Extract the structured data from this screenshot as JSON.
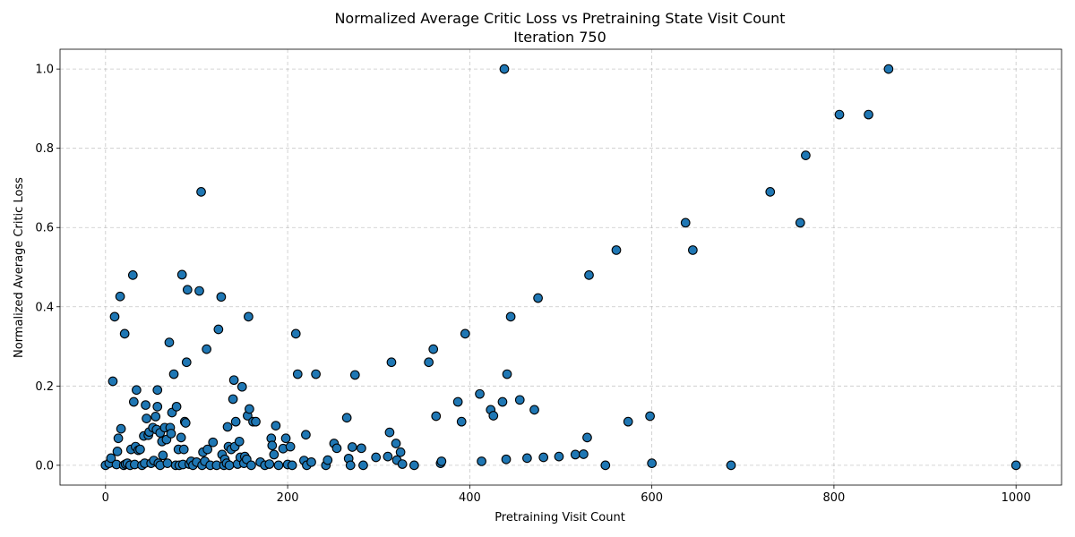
{
  "chart_data": {
    "type": "scatter",
    "title": "Normalized Average Critic Loss vs Pretraining State Visit Count",
    "subtitle": "Iteration 750",
    "xlabel": "Pretraining Visit Count",
    "ylabel": "Normalized Average Critic Loss",
    "xlim": [
      -50,
      1050
    ],
    "ylim": [
      -0.05,
      1.05
    ],
    "xticks": [
      "0",
      "200",
      "400",
      "600",
      "800",
      "1000"
    ],
    "xtick_values": [
      0,
      200,
      400,
      600,
      800,
      1000
    ],
    "yticks": [
      "0.0",
      "0.2",
      "0.4",
      "0.6",
      "0.8",
      "1.0"
    ],
    "ytick_values": [
      0.0,
      0.2,
      0.4,
      0.6,
      0.8,
      1.0
    ],
    "grid": true,
    "marker_color": "#1f77b4",
    "edge_color": "#000000",
    "points": [
      [
        0,
        0.0
      ],
      [
        4,
        0.005
      ],
      [
        6,
        0.018
      ],
      [
        8,
        0.212
      ],
      [
        10,
        0.375
      ],
      [
        12,
        0.002
      ],
      [
        13,
        0.035
      ],
      [
        14,
        0.068
      ],
      [
        16,
        0.426
      ],
      [
        17,
        0.092
      ],
      [
        20,
        0.0
      ],
      [
        21,
        0.332
      ],
      [
        22,
        0.003
      ],
      [
        24,
        0.005
      ],
      [
        27,
        0.0
      ],
      [
        28,
        0.04
      ],
      [
        30,
        0.48
      ],
      [
        31,
        0.16
      ],
      [
        32,
        0.002
      ],
      [
        33,
        0.047
      ],
      [
        34,
        0.19
      ],
      [
        36,
        0.038
      ],
      [
        38,
        0.04
      ],
      [
        40,
        0.0
      ],
      [
        42,
        0.074
      ],
      [
        43,
        0.005
      ],
      [
        44,
        0.152
      ],
      [
        45,
        0.118
      ],
      [
        47,
        0.076
      ],
      [
        48,
        0.084
      ],
      [
        50,
        0.005
      ],
      [
        52,
        0.095
      ],
      [
        53,
        0.012
      ],
      [
        55,
        0.123
      ],
      [
        56,
        0.09
      ],
      [
        57,
        0.148
      ],
      [
        57,
        0.19
      ],
      [
        58,
        0.005
      ],
      [
        60,
        0.082
      ],
      [
        60,
        0.0
      ],
      [
        62,
        0.06
      ],
      [
        63,
        0.025
      ],
      [
        65,
        0.095
      ],
      [
        67,
        0.065
      ],
      [
        68,
        0.005
      ],
      [
        70,
        0.31
      ],
      [
        71,
        0.095
      ],
      [
        72,
        0.08
      ],
      [
        73,
        0.133
      ],
      [
        75,
        0.23
      ],
      [
        77,
        0.0
      ],
      [
        78,
        0.148
      ],
      [
        80,
        0.04
      ],
      [
        81,
        0.0
      ],
      [
        83,
        0.07
      ],
      [
        84,
        0.481
      ],
      [
        85,
        0.002
      ],
      [
        86,
        0.04
      ],
      [
        87,
        0.11
      ],
      [
        88,
        0.107
      ],
      [
        89,
        0.26
      ],
      [
        90,
        0.443
      ],
      [
        92,
        0.003
      ],
      [
        94,
        0.01
      ],
      [
        96,
        0.0
      ],
      [
        100,
        0.008
      ],
      [
        103,
        0.44
      ],
      [
        105,
        0.69
      ],
      [
        106,
        0.0
      ],
      [
        107,
        0.033
      ],
      [
        109,
        0.01
      ],
      [
        111,
        0.293
      ],
      [
        112,
        0.04
      ],
      [
        115,
        0.0
      ],
      [
        118,
        0.058
      ],
      [
        122,
        0.0
      ],
      [
        124,
        0.343
      ],
      [
        127,
        0.425
      ],
      [
        128,
        0.027
      ],
      [
        130,
        0.0
      ],
      [
        131,
        0.015
      ],
      [
        133,
        0.005
      ],
      [
        134,
        0.097
      ],
      [
        135,
        0.047
      ],
      [
        136,
        0.0
      ],
      [
        138,
        0.04
      ],
      [
        140,
        0.167
      ],
      [
        141,
        0.215
      ],
      [
        142,
        0.047
      ],
      [
        143,
        0.11
      ],
      [
        145,
        0.003
      ],
      [
        147,
        0.06
      ],
      [
        148,
        0.02
      ],
      [
        150,
        0.198
      ],
      [
        152,
        0.005
      ],
      [
        153,
        0.022
      ],
      [
        155,
        0.015
      ],
      [
        156,
        0.125
      ],
      [
        157,
        0.375
      ],
      [
        158,
        0.142
      ],
      [
        160,
        0.0
      ],
      [
        162,
        0.11
      ],
      [
        165,
        0.11
      ],
      [
        170,
        0.008
      ],
      [
        175,
        0.0
      ],
      [
        180,
        0.003
      ],
      [
        182,
        0.068
      ],
      [
        183,
        0.05
      ],
      [
        185,
        0.027
      ],
      [
        187,
        0.1
      ],
      [
        190,
        0.0
      ],
      [
        195,
        0.042
      ],
      [
        198,
        0.068
      ],
      [
        200,
        0.002
      ],
      [
        203,
        0.047
      ],
      [
        205,
        0.0
      ],
      [
        209,
        0.332
      ],
      [
        211,
        0.23
      ],
      [
        218,
        0.012
      ],
      [
        220,
        0.077
      ],
      [
        221,
        0.0
      ],
      [
        226,
        0.008
      ],
      [
        231,
        0.23
      ],
      [
        242,
        0.0
      ],
      [
        244,
        0.013
      ],
      [
        251,
        0.055
      ],
      [
        254,
        0.043
      ],
      [
        265,
        0.12
      ],
      [
        267,
        0.017
      ],
      [
        269,
        0.0
      ],
      [
        271,
        0.046
      ],
      [
        274,
        0.228
      ],
      [
        281,
        0.043
      ],
      [
        283,
        0.0
      ],
      [
        297,
        0.02
      ],
      [
        310,
        0.022
      ],
      [
        312,
        0.083
      ],
      [
        314,
        0.26
      ],
      [
        319,
        0.055
      ],
      [
        320,
        0.013
      ],
      [
        324,
        0.033
      ],
      [
        326,
        0.003
      ],
      [
        339,
        0.0
      ],
      [
        355,
        0.26
      ],
      [
        360,
        0.293
      ],
      [
        363,
        0.124
      ],
      [
        368,
        0.005
      ],
      [
        369,
        0.01
      ],
      [
        387,
        0.16
      ],
      [
        391,
        0.11
      ],
      [
        395,
        0.332
      ],
      [
        411,
        0.18
      ],
      [
        413,
        0.01
      ],
      [
        423,
        0.14
      ],
      [
        426,
        0.125
      ],
      [
        436,
        0.16
      ],
      [
        438,
        1.0
      ],
      [
        440,
        0.015
      ],
      [
        441,
        0.23
      ],
      [
        445,
        0.375
      ],
      [
        455,
        0.165
      ],
      [
        463,
        0.018
      ],
      [
        471,
        0.14
      ],
      [
        475,
        0.422
      ],
      [
        481,
        0.02
      ],
      [
        498,
        0.022
      ],
      [
        516,
        0.027
      ],
      [
        525,
        0.028
      ],
      [
        529,
        0.07
      ],
      [
        531,
        0.48
      ],
      [
        549,
        0.0
      ],
      [
        561,
        0.543
      ],
      [
        574,
        0.11
      ],
      [
        598,
        0.124
      ],
      [
        600,
        0.005
      ],
      [
        637,
        0.612
      ],
      [
        645,
        0.543
      ],
      [
        687,
        0.0
      ],
      [
        730,
        0.69
      ],
      [
        763,
        0.612
      ],
      [
        769,
        0.782
      ],
      [
        806,
        0.885
      ],
      [
        838,
        0.885
      ],
      [
        860,
        1.0
      ],
      [
        1000,
        0.0
      ]
    ]
  }
}
